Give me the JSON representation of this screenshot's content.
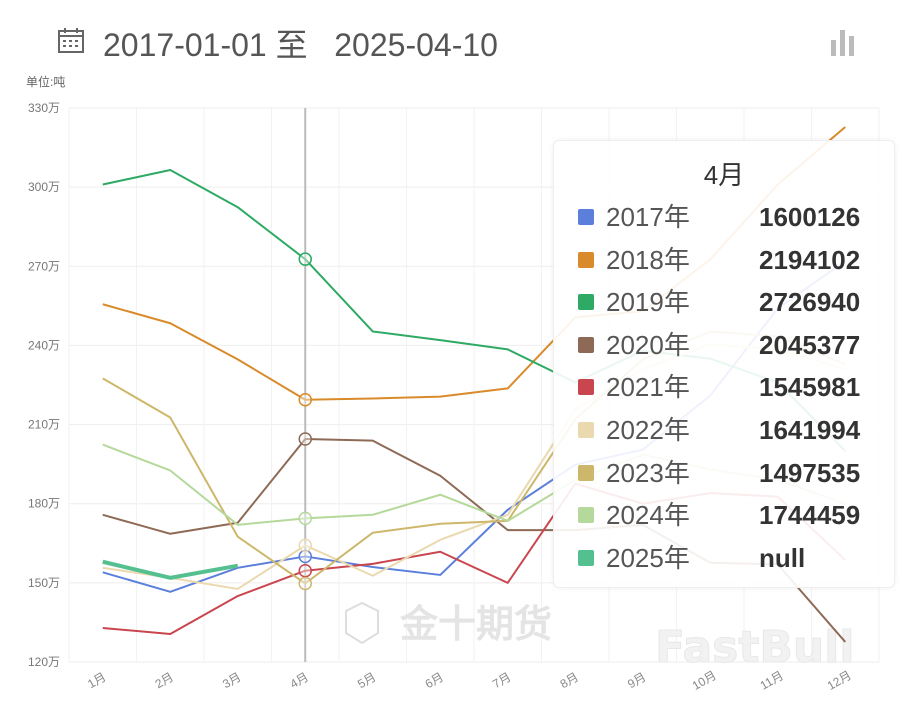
{
  "header": {
    "date_range": "2017-01-01 至   2025-04-10",
    "calendar_icon": "calendar-icon",
    "chart_toggle_icon": "bar-chart-icon"
  },
  "watermarks": [
    "金十期货",
    "FastBull"
  ],
  "chart_data": {
    "type": "line",
    "unit_label": "单位:吨",
    "categories": [
      "1月",
      "2月",
      "3月",
      "4月",
      "5月",
      "6月",
      "7月",
      "8月",
      "9月",
      "10月",
      "11月",
      "12月"
    ],
    "ylim": [
      1200000,
      3300000
    ],
    "yticks": [
      1200000,
      1500000,
      1800000,
      2100000,
      2400000,
      2700000,
      3000000,
      3300000
    ],
    "ytick_labels": [
      "120万",
      "150万",
      "180万",
      "210万",
      "240万",
      "270万",
      "300万",
      "330万"
    ],
    "grid": true,
    "series": [
      {
        "name": "2017年",
        "color": "#5b7fdb",
        "values": [
          1540000,
          1466000,
          1557000,
          1600126,
          1560000,
          1530000,
          1777000,
          1948000,
          2005000,
          2210000,
          2540000,
          2720000
        ]
      },
      {
        "name": "2018年",
        "color": "#d98a2b",
        "values": [
          2556000,
          2484000,
          2347000,
          2194102,
          2199000,
          2206000,
          2237000,
          2506000,
          2530000,
          2726000,
          3010000,
          3228000
        ]
      },
      {
        "name": "2019年",
        "color": "#2eaa64",
        "values": [
          3010000,
          3065000,
          2924000,
          2726940,
          2453000,
          2420000,
          2385000,
          2260000,
          2380000,
          2350000,
          2260000,
          2000000
        ]
      },
      {
        "name": "2020年",
        "color": "#8e6a56",
        "values": [
          1758000,
          1686000,
          1728000,
          2045377,
          2039000,
          1906000,
          1700000,
          1700000,
          1720000,
          1576000,
          1570000,
          1276000
        ]
      },
      {
        "name": "2021年",
        "color": "#c9464f",
        "values": [
          1329000,
          1306000,
          1450000,
          1545981,
          1572000,
          1618000,
          1500000,
          1876000,
          1800000,
          1840000,
          1827000,
          1587000
        ]
      },
      {
        "name": "2022年",
        "color": "#ead9ae",
        "values": [
          1557000,
          1519000,
          1477000,
          1641994,
          1527000,
          1663000,
          1758000,
          2157000,
          2310000,
          2404000,
          2385000,
          2310000
        ]
      },
      {
        "name": "2023年",
        "color": "#cdb76a",
        "values": [
          2275000,
          2127000,
          1675000,
          1497535,
          1690000,
          1724000,
          1735000,
          2120000,
          2347000,
          2453000,
          2434000,
          2328000
        ]
      },
      {
        "name": "2024年",
        "color": "#b5d99a",
        "values": [
          2024000,
          1926000,
          1720000,
          1744459,
          1758000,
          1834000,
          1735000,
          1890000,
          1986000,
          1930000,
          1890000,
          1800000
        ]
      },
      {
        "name": "2025年",
        "color": "#55c08f",
        "values": [
          1580000,
          1519000,
          1565000,
          null,
          null,
          null,
          null,
          null,
          null,
          null,
          null,
          null
        ]
      }
    ],
    "highlight_category": "4月",
    "tooltip": {
      "title": "4月",
      "rows": [
        {
          "label": "2017年",
          "value": "1600126",
          "color": "#5b7fdb"
        },
        {
          "label": "2018年",
          "value": "2194102",
          "color": "#d98a2b"
        },
        {
          "label": "2019年",
          "value": "2726940",
          "color": "#2eaa64"
        },
        {
          "label": "2020年",
          "value": "2045377",
          "color": "#8e6a56"
        },
        {
          "label": "2021年",
          "value": "1545981",
          "color": "#c9464f"
        },
        {
          "label": "2022年",
          "value": "1641994",
          "color": "#ead9ae"
        },
        {
          "label": "2023年",
          "value": "1497535",
          "color": "#cdb76a"
        },
        {
          "label": "2024年",
          "value": "1744459",
          "color": "#b5d99a"
        },
        {
          "label": "2025年",
          "value": "null",
          "color": "#55c08f"
        }
      ]
    }
  }
}
